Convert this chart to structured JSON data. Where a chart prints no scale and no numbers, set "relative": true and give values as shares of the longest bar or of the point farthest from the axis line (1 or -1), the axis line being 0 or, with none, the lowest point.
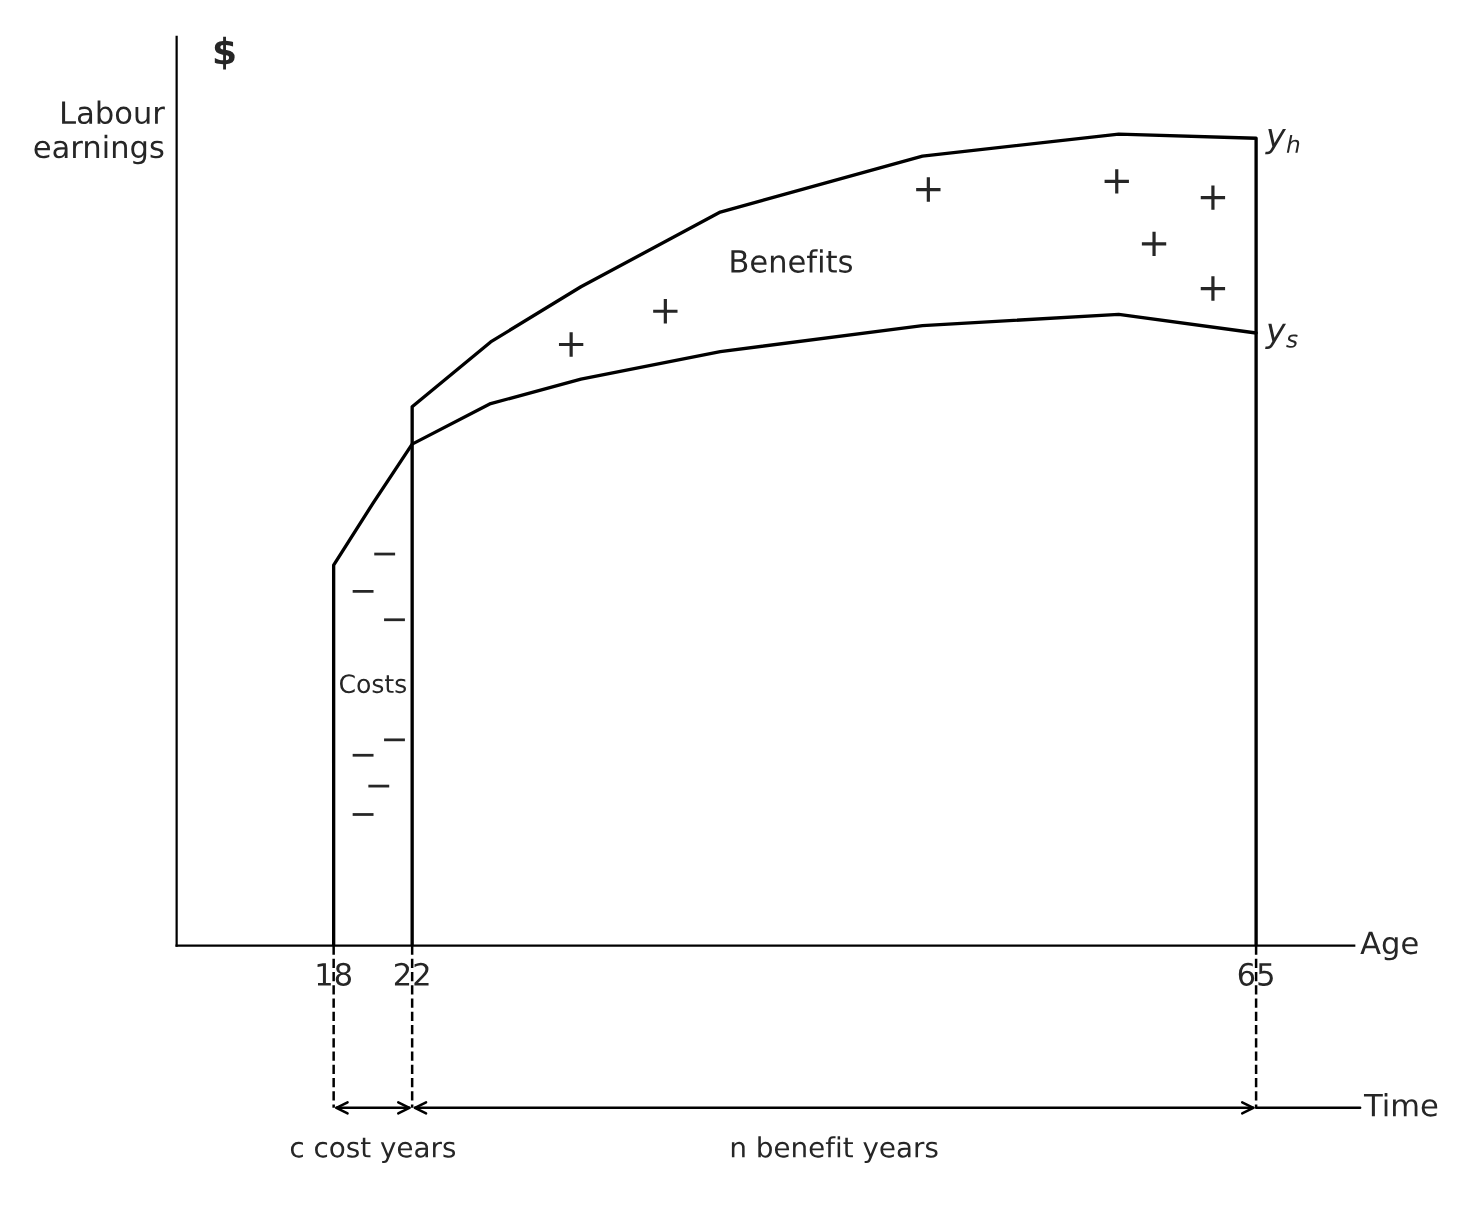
{
  "chart_data": {
    "type": "line",
    "relative": true,
    "xlabel": "Age",
    "ylabel": "Labour earnings",
    "x": [
      18,
      18,
      20,
      22,
      26,
      30.6,
      37.7,
      48,
      58,
      65
    ],
    "series": [
      {
        "name": "y$_{s}$",
        "color": "#000000",
        "values": [
          0,
          0.469,
          0.545,
          0.618,
          0.668,
          0.698,
          0.732,
          0.764,
          0.778,
          0.755
        ]
      },
      {
        "name": "y$_{h}$",
        "color": "#000000",
        "x": [
          22,
          22,
          26,
          30.6,
          37.7,
          48,
          58,
          65,
          65
        ],
        "values": [
          0,
          0.664,
          0.744,
          0.812,
          0.904,
          0.973,
          1,
          0.995,
          0
        ]
      }
    ],
    "xlim": [
      10,
      70
    ],
    "xticks": [
      18,
      22,
      65
    ],
    "grid": false,
    "legend": false,
    "marker": "none",
    "line_style": "solid",
    "annotations": [
      "$",
      "Benefits",
      "Costs",
      "+",
      "+",
      "+",
      "+",
      "+",
      "+",
      "+",
      "−",
      "−",
      "−",
      "−",
      "−",
      "−",
      "−",
      "c cost years",
      "n benefit years",
      "Time"
    ]
  }
}
